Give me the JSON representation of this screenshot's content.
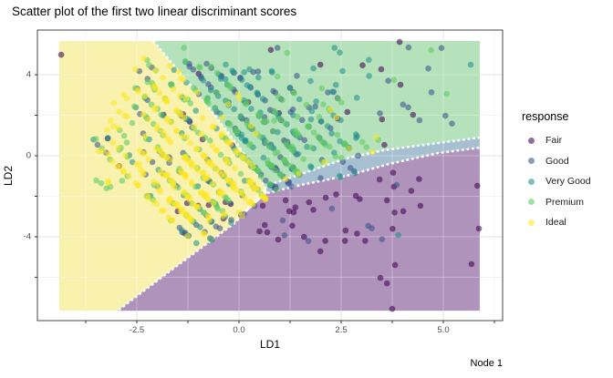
{
  "title": "Scatter plot of the first two linear discriminant scores",
  "footer": {
    "node_label": "Node 1"
  },
  "legend": {
    "title": "response",
    "items": [
      {
        "label": "Fair",
        "color": "#440154"
      },
      {
        "label": "Good",
        "color": "#3b528b"
      },
      {
        "label": "Very Good",
        "color": "#21918c"
      },
      {
        "label": "Premium",
        "color": "#5ec962"
      },
      {
        "label": "Ideal",
        "color": "#fde725"
      }
    ]
  },
  "axis": {
    "x": {
      "label": "LD1",
      "tick_labels": [
        "-2.5",
        "0.0",
        "2.5",
        "5.0"
      ],
      "tick_values": [
        -2.5,
        0.0,
        2.5,
        5.0
      ],
      "minor_values": [
        -3.75,
        -1.25,
        1.25,
        3.75,
        6.25
      ],
      "range": [
        -4.93,
        6.45
      ]
    },
    "y": {
      "label": "LD2",
      "tick_labels": [
        "4",
        "0",
        "-4"
      ],
      "tick_values": [
        4,
        0,
        -4
      ],
      "minor_values": [
        2,
        -2,
        -6
      ],
      "range": [
        -8.14,
        6.21
      ]
    }
  },
  "chart_data": {
    "type": "scatter",
    "title": "Scatter plot of the first two linear discriminant scores",
    "xlabel": "LD1",
    "ylabel": "LD2",
    "xlim": [
      -4.93,
      6.45
    ],
    "ylim": [
      -8.14,
      6.21
    ],
    "grid": true,
    "legend_position": "right",
    "classes": [
      "Fair",
      "Good",
      "Very Good",
      "Premium",
      "Ideal"
    ],
    "class_colors": {
      "Fair": "#440154",
      "Good": "#3b528b",
      "Very Good": "#21918c",
      "Premium": "#5ec962",
      "Ideal": "#fde725"
    },
    "point_opacity": 0.58,
    "point_radius_px": 3.3,
    "decision_regions": {
      "fills": {
        "Ideal": "#f8f2ae",
        "Premium": "#b5e2bb",
        "Good": "#a6c0d2",
        "Fair": "#af93bb"
      },
      "tile_bounds": {
        "x": [
          -4.4,
          5.89
        ],
        "y": [
          -7.65,
          5.67
        ]
      },
      "polygons": {
        "Ideal": [
          [
            -4.4,
            5.67
          ],
          [
            -2.1,
            5.67
          ],
          [
            -1.12,
            3.33
          ],
          [
            -0.36,
            1.39
          ],
          [
            0.18,
            -0.04
          ],
          [
            0.66,
            -1.62
          ],
          [
            -0.11,
            -3.33
          ],
          [
            -1.76,
            -5.8
          ],
          [
            -2.97,
            -7.65
          ],
          [
            -4.4,
            -7.65
          ]
        ],
        "Premium": [
          [
            -2.1,
            5.67
          ],
          [
            5.89,
            5.67
          ],
          [
            5.89,
            0.9
          ],
          [
            4.87,
            0.63
          ],
          [
            3.53,
            0.27
          ],
          [
            2.63,
            -0.13
          ],
          [
            0.74,
            -1.44
          ],
          [
            0.66,
            -1.62
          ],
          [
            0.18,
            -0.04
          ],
          [
            -0.36,
            1.39
          ],
          [
            -1.12,
            3.33
          ]
        ],
        "Good": [
          [
            0.66,
            -1.62
          ],
          [
            0.74,
            -1.44
          ],
          [
            2.63,
            -0.13
          ],
          [
            3.53,
            0.27
          ],
          [
            4.87,
            0.63
          ],
          [
            5.89,
            0.9
          ],
          [
            5.89,
            0.4
          ],
          [
            4.87,
            0.13
          ],
          [
            3.68,
            -0.4
          ],
          [
            2.63,
            -0.99
          ],
          [
            1.52,
            -1.44
          ],
          [
            0.69,
            -1.84
          ]
        ],
        "Fair": [
          [
            0.69,
            -1.84
          ],
          [
            1.52,
            -1.44
          ],
          [
            2.63,
            -0.99
          ],
          [
            3.68,
            -0.4
          ],
          [
            4.87,
            0.13
          ],
          [
            5.89,
            0.4
          ],
          [
            5.89,
            -7.65
          ],
          [
            -2.97,
            -7.65
          ],
          [
            -1.76,
            -5.8
          ],
          [
            -0.11,
            -3.33
          ]
        ]
      },
      "boundary_polylines": {
        "ideal_premium": [
          [
            -2.1,
            5.67
          ],
          [
            -1.12,
            3.33
          ],
          [
            -0.36,
            1.39
          ],
          [
            0.18,
            -0.04
          ],
          [
            0.66,
            -1.62
          ]
        ],
        "ideal_fair": [
          [
            0.66,
            -1.62
          ],
          [
            -0.11,
            -3.33
          ],
          [
            -1.76,
            -5.8
          ],
          [
            -2.97,
            -7.65
          ]
        ],
        "good_upper": [
          [
            0.74,
            -1.44
          ],
          [
            2.63,
            -0.13
          ],
          [
            3.53,
            0.27
          ],
          [
            4.87,
            0.63
          ],
          [
            5.89,
            0.9
          ]
        ],
        "good_lower": [
          [
            0.69,
            -1.84
          ],
          [
            1.52,
            -1.44
          ],
          [
            2.63,
            -0.99
          ],
          [
            3.68,
            -0.4
          ],
          [
            4.87,
            0.13
          ],
          [
            5.89,
            0.4
          ]
        ]
      }
    },
    "point_pattern": {
      "note": "points lie on parallel diagonal stripes LD2 ~ c - 2*LD1",
      "seed": 42,
      "stripes": [
        {
          "x_at_ld2_0": -3.21,
          "tip_ld2": 0.94,
          "n": 40
        },
        {
          "x_at_ld2_0": -2.75,
          "tip_ld2": 1.39,
          "n": 50
        },
        {
          "x_at_ld2_0": -2.28,
          "tip_ld2": 1.93,
          "n": 62
        },
        {
          "x_at_ld2_0": -1.81,
          "tip_ld2": 2.65,
          "n": 72
        },
        {
          "x_at_ld2_0": -1.34,
          "tip_ld2": 3.33,
          "n": 85
        },
        {
          "x_at_ld2_0": -0.87,
          "tip_ld2": 3.96,
          "n": 95
        },
        {
          "x_at_ld2_0": -0.4,
          "tip_ld2": 4.54,
          "n": 105
        },
        {
          "x_at_ld2_0": 0.07,
          "tip_ld2": 4.9,
          "n": 112
        },
        {
          "x_at_ld2_0": 0.54,
          "tip_ld2": 5.08,
          "n": 112
        },
        {
          "x_at_ld2_0": 1.0,
          "tip_ld2": 5.08,
          "n": 105
        },
        {
          "x_at_ld2_0": 1.47,
          "tip_ld2": 4.99,
          "n": 95
        },
        {
          "x_at_ld2_0": 1.94,
          "tip_ld2": 4.86,
          "n": 85
        },
        {
          "x_at_ld2_0": 2.41,
          "tip_ld2": 4.63,
          "n": 68
        },
        {
          "x_at_ld2_0": 2.88,
          "tip_ld2": 4.45,
          "n": 50
        },
        {
          "x_at_ld2_0": 3.35,
          "tip_ld2": 4.18,
          "n": 38
        },
        {
          "x_at_ld2_0": 3.82,
          "tip_ld2": 3.87,
          "n": 26
        }
      ],
      "free_scatter": [
        {
          "x_range": [
            -1.38,
            5.76
          ],
          "y_range": [
            1.39,
            5.44
          ],
          "n": 55,
          "weights": "green_top"
        },
        {
          "x_range": [
            -3.62,
            -1.94
          ],
          "y_range": [
            -1.98,
            1.84
          ],
          "n": 18,
          "weights": "yellow_west"
        }
      ],
      "class_weights": {
        "yellow": {
          "Ideal": 0.6,
          "Premium": 0.22,
          "Very Good": 0.1,
          "Good": 0.07,
          "Fair": 0.01
        },
        "green": {
          "Premium": 0.44,
          "Very Good": 0.28,
          "Good": 0.2,
          "Ideal": 0.06,
          "Fair": 0.02
        },
        "green_top": {
          "Good": 0.42,
          "Very Good": 0.3,
          "Premium": 0.22,
          "Fair": 0.06
        },
        "blue": {
          "Good": 0.62,
          "Very Good": 0.26,
          "Premium": 0.06,
          "Fair": 0.06
        },
        "purple": {
          "Fair": 0.62,
          "Good": 0.28,
          "Very Good": 0.1
        },
        "stripe_end": {
          "Good": 0.52,
          "Very Good": 0.26,
          "Ideal": 0.12,
          "Premium": 0.1
        },
        "yellow_west": {
          "Ideal": 0.45,
          "Premium": 0.3,
          "Very Good": 0.25
        }
      }
    },
    "outlier_points": {
      "Fair": [
        [
          -4.35,
          4.99
        ],
        [
          1.99,
          4.5
        ],
        [
          3.93,
          5.62
        ],
        [
          3.48,
          4.27
        ],
        [
          3.95,
          3.51
        ],
        [
          4.26,
          2.02
        ],
        [
          3.5,
          1.8
        ],
        [
          5.83,
          -1.48
        ],
        [
          3.62,
          -2.2
        ],
        [
          4.02,
          -2.74
        ],
        [
          4.44,
          -2.47
        ],
        [
          5.87,
          -3.6
        ],
        [
          5.69,
          -5.35
        ],
        [
          3.82,
          -5.4
        ],
        [
          3.46,
          -6.03
        ],
        [
          3.62,
          -6.3
        ],
        [
          3.75,
          -7.56
        ],
        [
          -1.27,
          -2.34
        ],
        [
          -1.0,
          -2.47
        ],
        [
          -0.74,
          -2.43
        ],
        [
          -1.5,
          -2.74
        ],
        [
          -0.33,
          -2.29
        ],
        [
          -0.2,
          -2.38
        ],
        [
          -0.38,
          -3.1
        ],
        [
          0.58,
          -2.47
        ],
        [
          0.63,
          -3.42
        ],
        [
          0.69,
          -3.78
        ],
        [
          0.96,
          -4.14
        ],
        [
          1.23,
          -2.74
        ],
        [
          1.34,
          -2.79
        ],
        [
          1.14,
          -2.2
        ],
        [
          2.12,
          -2.07
        ],
        [
          2.86,
          -1.98
        ],
        [
          3.44,
          -1.17
        ],
        [
          3.79,
          -1.53
        ],
        [
          1.99,
          -4.72
        ],
        [
          2.61,
          -3.69
        ],
        [
          -0.89,
          0.81
        ]
      ],
      "Good": [
        [
          3.86,
          -1.44
        ],
        [
          1.07,
          -3.19
        ]
      ]
    }
  },
  "plot_style": {
    "panel_border_color": "#474747",
    "grid_major_color": "#e3e3e3",
    "grid_minor_color": "#efefef",
    "tick_color": "#333333"
  }
}
